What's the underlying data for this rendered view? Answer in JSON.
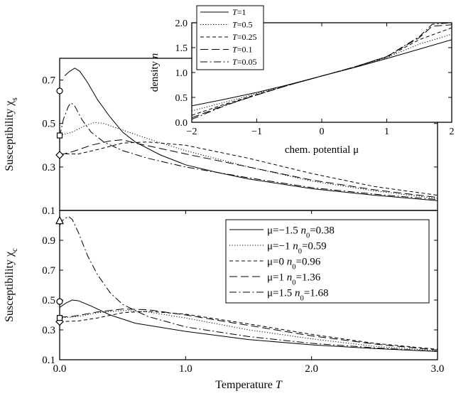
{
  "chart_data": [
    {
      "type": "line",
      "panel": "top",
      "ylabel": "Susceptibility χs",
      "xlim": [
        0,
        3
      ],
      "ylim": [
        0.1,
        0.8
      ],
      "yticks": [
        {
          "v": 0.1,
          "label": "0.1"
        },
        {
          "v": 0.3,
          "label": "0.3"
        },
        {
          "v": 0.5,
          "label": "0.5"
        },
        {
          "v": 0.7,
          "label": "0.7"
        }
      ],
      "series": [
        {
          "style": "solid",
          "markerShape": "circle",
          "markerValue": 0.65,
          "points": [
            [
              0.04,
              0.72
            ],
            [
              0.08,
              0.74
            ],
            [
              0.12,
              0.755
            ],
            [
              0.16,
              0.74
            ],
            [
              0.22,
              0.69
            ],
            [
              0.3,
              0.61
            ],
            [
              0.4,
              0.53
            ],
            [
              0.5,
              0.46
            ],
            [
              0.6,
              0.415
            ],
            [
              0.8,
              0.355
            ],
            [
              1.0,
              0.31
            ],
            [
              1.25,
              0.275
            ],
            [
              1.5,
              0.245
            ],
            [
              2.0,
              0.2
            ],
            [
              2.5,
              0.17
            ],
            [
              3.0,
              0.145
            ]
          ]
        },
        {
          "style": "dashdot",
          "markerShape": null,
          "markerValue": null,
          "points": [
            [
              0.0,
              0.44
            ],
            [
              0.03,
              0.52
            ],
            [
              0.07,
              0.58
            ],
            [
              0.09,
              0.595
            ],
            [
              0.12,
              0.58
            ],
            [
              0.18,
              0.515
            ],
            [
              0.25,
              0.46
            ],
            [
              0.35,
              0.415
            ],
            [
              0.5,
              0.375
            ],
            [
              0.7,
              0.34
            ],
            [
              1.0,
              0.3
            ],
            [
              1.5,
              0.25
            ],
            [
              2.0,
              0.205
            ],
            [
              2.5,
              0.175
            ],
            [
              3.0,
              0.15
            ]
          ]
        },
        {
          "style": "dotted",
          "markerShape": "square",
          "markerValue": 0.445,
          "points": [
            [
              0.0,
              0.445
            ],
            [
              0.1,
              0.46
            ],
            [
              0.2,
              0.49
            ],
            [
              0.28,
              0.505
            ],
            [
              0.35,
              0.5
            ],
            [
              0.5,
              0.47
            ],
            [
              0.7,
              0.43
            ],
            [
              1.0,
              0.375
            ],
            [
              1.5,
              0.3
            ],
            [
              2.0,
              0.235
            ],
            [
              2.5,
              0.19
            ],
            [
              3.0,
              0.155
            ]
          ]
        },
        {
          "style": "longdash",
          "markerShape": "diamond",
          "markerValue": 0.355,
          "points": [
            [
              0.0,
              0.355
            ],
            [
              0.1,
              0.37
            ],
            [
              0.25,
              0.4
            ],
            [
              0.4,
              0.42
            ],
            [
              0.5,
              0.425
            ],
            [
              0.6,
              0.41
            ],
            [
              0.8,
              0.385
            ],
            [
              1.0,
              0.36
            ],
            [
              1.5,
              0.3
            ],
            [
              2.0,
              0.24
            ],
            [
              2.5,
              0.195
            ],
            [
              3.0,
              0.16
            ]
          ]
        },
        {
          "style": "dashed",
          "markerShape": null,
          "markerValue": null,
          "points": [
            [
              0.0,
              0.36
            ],
            [
              0.15,
              0.36
            ],
            [
              0.3,
              0.38
            ],
            [
              0.5,
              0.41
            ],
            [
              0.7,
              0.415
            ],
            [
              1.0,
              0.4
            ],
            [
              1.5,
              0.34
            ],
            [
              2.0,
              0.27
            ],
            [
              2.5,
              0.21
            ],
            [
              3.0,
              0.17
            ]
          ]
        }
      ]
    },
    {
      "type": "line",
      "panel": "bottom",
      "xlabel": "Temperature T",
      "ylabel": "Susceptibility χc",
      "xlim": [
        0,
        3
      ],
      "ylim": [
        0.1,
        1.1
      ],
      "xticks": [
        {
          "v": 0,
          "label": "0.0"
        },
        {
          "v": 1,
          "label": "1.0"
        },
        {
          "v": 2,
          "label": "2.0"
        },
        {
          "v": 3,
          "label": "3.0"
        }
      ],
      "yticks": [
        {
          "v": 0.1,
          "label": "0.1"
        },
        {
          "v": 0.3,
          "label": "0.3"
        },
        {
          "v": 0.5,
          "label": "0.5"
        },
        {
          "v": 0.7,
          "label": "0.7"
        },
        {
          "v": 0.9,
          "label": "0.9"
        }
      ],
      "legend_position": "top-right",
      "series": [
        {
          "name": "μ=−1.5  n0=0.38",
          "style": "solid",
          "markerShape": "circle",
          "markerValue": 0.49,
          "points": [
            [
              0.0,
              0.45
            ],
            [
              0.05,
              0.48
            ],
            [
              0.1,
              0.5
            ],
            [
              0.15,
              0.495
            ],
            [
              0.25,
              0.46
            ],
            [
              0.4,
              0.4
            ],
            [
              0.6,
              0.345
            ],
            [
              1.0,
              0.29
            ],
            [
              1.5,
              0.235
            ],
            [
              2.0,
              0.2
            ],
            [
              2.5,
              0.175
            ],
            [
              3.0,
              0.155
            ]
          ]
        },
        {
          "name": "μ=−1  n0=0.59",
          "style": "dotted",
          "markerShape": null,
          "markerValue": null,
          "points": [
            [
              0.0,
              0.38
            ],
            [
              0.15,
              0.39
            ],
            [
              0.3,
              0.415
            ],
            [
              0.5,
              0.43
            ],
            [
              0.7,
              0.42
            ],
            [
              1.0,
              0.38
            ],
            [
              1.5,
              0.3
            ],
            [
              2.0,
              0.24
            ],
            [
              2.5,
              0.19
            ],
            [
              3.0,
              0.16
            ]
          ]
        },
        {
          "name": "μ=0   n0=0.96",
          "style": "dashed",
          "markerShape": "diamond",
          "markerValue": 0.355,
          "points": [
            [
              0.0,
              0.355
            ],
            [
              0.15,
              0.36
            ],
            [
              0.3,
              0.38
            ],
            [
              0.5,
              0.415
            ],
            [
              0.7,
              0.425
            ],
            [
              1.0,
              0.405
            ],
            [
              1.5,
              0.34
            ],
            [
              2.0,
              0.27
            ],
            [
              2.5,
              0.21
            ],
            [
              3.0,
              0.17
            ]
          ]
        },
        {
          "name": "μ=1   n0=1.36",
          "style": "longdash",
          "markerShape": "square",
          "markerValue": 0.38,
          "points": [
            [
              0.0,
              0.385
            ],
            [
              0.1,
              0.39
            ],
            [
              0.3,
              0.42
            ],
            [
              0.5,
              0.44
            ],
            [
              0.7,
              0.435
            ],
            [
              1.0,
              0.4
            ],
            [
              1.5,
              0.33
            ],
            [
              2.0,
              0.26
            ],
            [
              2.5,
              0.205
            ],
            [
              3.0,
              0.165
            ]
          ]
        },
        {
          "name": "μ=1.5   n0=1.68",
          "style": "dashdot",
          "markerShape": "triangle",
          "markerValue": 1.03,
          "points": [
            [
              0.0,
              1.0
            ],
            [
              0.03,
              1.04
            ],
            [
              0.07,
              1.06
            ],
            [
              0.1,
              1.04
            ],
            [
              0.15,
              0.95
            ],
            [
              0.22,
              0.8
            ],
            [
              0.3,
              0.67
            ],
            [
              0.4,
              0.55
            ],
            [
              0.5,
              0.47
            ],
            [
              0.7,
              0.39
            ],
            [
              1.0,
              0.32
            ],
            [
              1.5,
              0.255
            ],
            [
              2.0,
              0.21
            ],
            [
              2.5,
              0.18
            ],
            [
              3.0,
              0.155
            ]
          ]
        }
      ]
    },
    {
      "type": "line",
      "panel": "inset",
      "xlabel": "chem. potential μ",
      "ylabel": "density n",
      "xlim": [
        -2,
        2
      ],
      "ylim": [
        0,
        2
      ],
      "xticks": [
        {
          "v": -2,
          "label": "−2"
        },
        {
          "v": -1,
          "label": "−1"
        },
        {
          "v": 0,
          "label": "0"
        },
        {
          "v": 1,
          "label": "1"
        },
        {
          "v": 2,
          "label": "2"
        }
      ],
      "yticks": [
        {
          "v": 0,
          "label": "0.0"
        },
        {
          "v": 0.5,
          "label": "0.5"
        },
        {
          "v": 1,
          "label": "1.0"
        },
        {
          "v": 1.5,
          "label": "1.5"
        },
        {
          "v": 2,
          "label": "2.0"
        }
      ],
      "legend_position": "top-left",
      "series": [
        {
          "name": "T=1",
          "style": "solid",
          "points": [
            [
              -2,
              0.33
            ],
            [
              -1.5,
              0.46
            ],
            [
              -1,
              0.6
            ],
            [
              -0.5,
              0.76
            ],
            [
              0,
              0.93
            ],
            [
              0.5,
              1.1
            ],
            [
              1,
              1.28
            ],
            [
              1.5,
              1.47
            ],
            [
              2,
              1.66
            ]
          ]
        },
        {
          "name": "T=0.5",
          "style": "dotted",
          "points": [
            [
              -2,
              0.23
            ],
            [
              -1.5,
              0.4
            ],
            [
              -1,
              0.58
            ],
            [
              -0.5,
              0.76
            ],
            [
              0,
              0.93
            ],
            [
              0.5,
              1.11
            ],
            [
              1,
              1.3
            ],
            [
              1.5,
              1.57
            ],
            [
              2,
              1.77
            ]
          ]
        },
        {
          "name": "T=0.25",
          "style": "dashed",
          "points": [
            [
              -2,
              0.14
            ],
            [
              -1.5,
              0.36
            ],
            [
              -1,
              0.56
            ],
            [
              -0.5,
              0.75
            ],
            [
              0,
              0.93
            ],
            [
              0.5,
              1.11
            ],
            [
              1,
              1.31
            ],
            [
              1.5,
              1.66
            ],
            [
              2,
              1.9
            ]
          ]
        },
        {
          "name": "T=0.1",
          "style": "longdash",
          "points": [
            [
              -2,
              0.09
            ],
            [
              -1.5,
              0.34
            ],
            [
              -1,
              0.55
            ],
            [
              -0.5,
              0.75
            ],
            [
              0,
              0.93
            ],
            [
              0.5,
              1.11
            ],
            [
              1,
              1.32
            ],
            [
              1.5,
              1.7
            ],
            [
              1.7,
              1.93
            ],
            [
              2,
              1.96
            ]
          ]
        },
        {
          "name": "T=0.05",
          "style": "dashdot",
          "points": [
            [
              -2,
              0.06
            ],
            [
              -1.5,
              0.33
            ],
            [
              -1,
              0.55
            ],
            [
              -0.5,
              0.75
            ],
            [
              0,
              0.93
            ],
            [
              0.5,
              1.11
            ],
            [
              1,
              1.32
            ],
            [
              1.5,
              1.72
            ],
            [
              1.7,
              1.97
            ],
            [
              2,
              2.0
            ]
          ]
        }
      ]
    }
  ]
}
